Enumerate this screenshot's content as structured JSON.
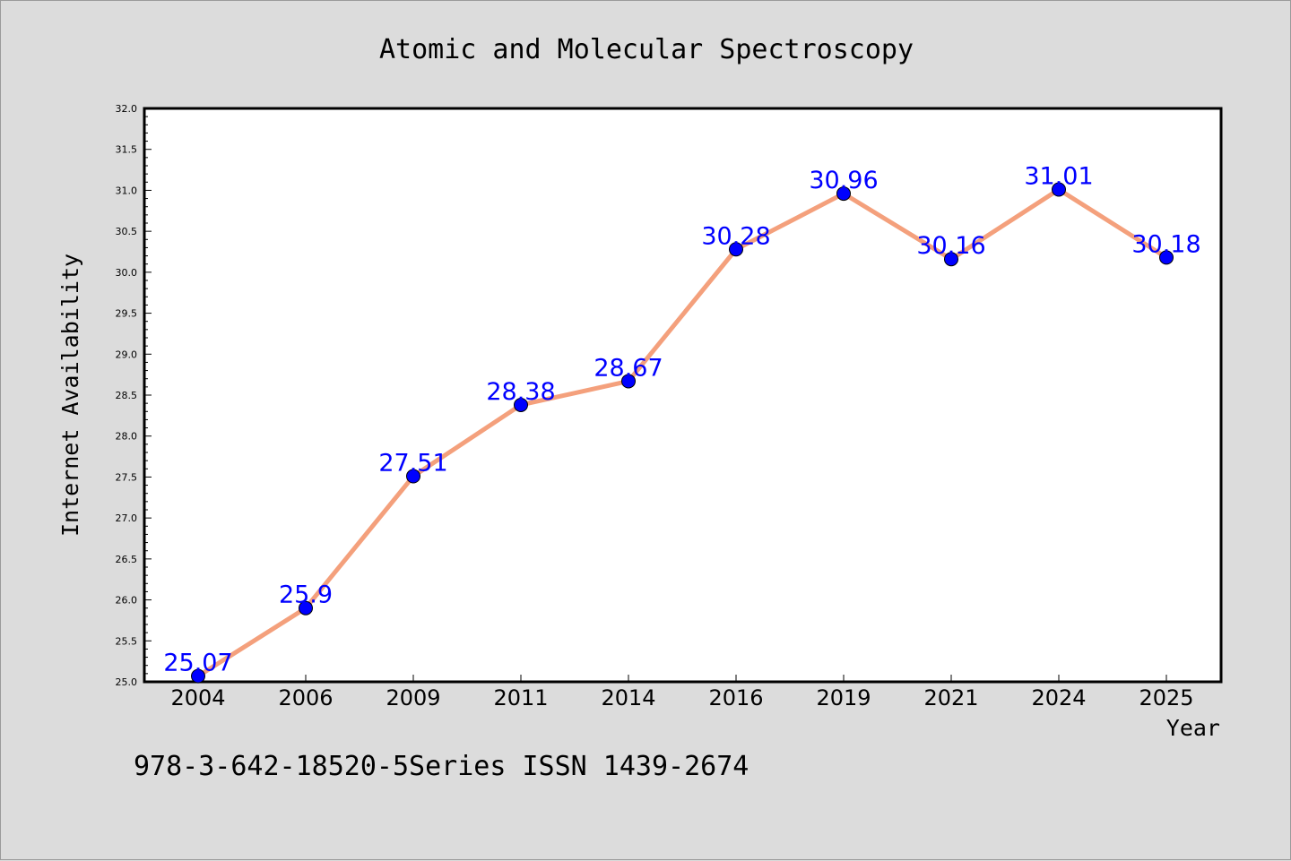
{
  "chart_data": {
    "type": "line",
    "title": "Atomic and Molecular Spectroscopy",
    "xlabel": "Year",
    "ylabel": "Internet Availability",
    "categories": [
      "2004",
      "2006",
      "2009",
      "2011",
      "2014",
      "2016",
      "2019",
      "2021",
      "2024",
      "2025"
    ],
    "series": [
      {
        "values": [
          25.07,
          25.9,
          27.51,
          28.38,
          28.67,
          30.28,
          30.96,
          30.16,
          31.01,
          30.18
        ],
        "labels": [
          "25.07",
          "25.9",
          "27.51",
          "28.38",
          "28.67",
          "30.28",
          "30.96",
          "30.16",
          "31.01",
          "30.18"
        ],
        "line_color": "#f4a07c",
        "marker_color": "#0000ff",
        "label_color": "#0000ff"
      }
    ],
    "ylim": [
      25.0,
      32.0
    ],
    "yticks": [
      "25.0",
      "25.5",
      "26.0",
      "26.5",
      "27.0",
      "27.5",
      "28.0",
      "28.5",
      "29.0",
      "29.5",
      "30.0",
      "30.5",
      "31.0",
      "31.5",
      "32.0"
    ],
    "grid": false,
    "legend": "none"
  },
  "footer": {
    "text": "978-3-642-18520-5Series ISSN 1439-2674"
  },
  "colors": {
    "background": "#dcdcdc",
    "plot_background": "#ffffff",
    "axis": "#000000"
  }
}
